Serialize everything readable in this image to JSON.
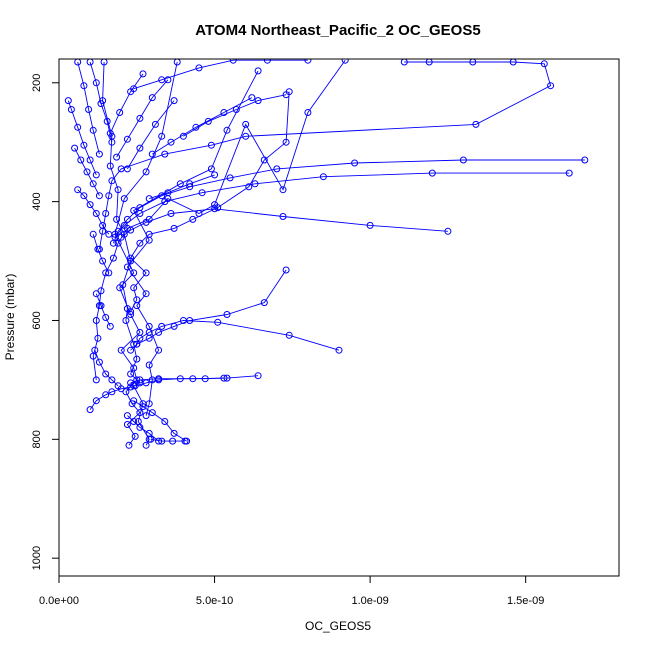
{
  "chart_data": {
    "type": "line",
    "title": "ATOM4 Northeast_Pacific_2 OC_GEOS5",
    "xlabel": "OC_GEOS5",
    "ylabel": "Pressure (mbar)",
    "xlim": [
      0,
      1.8e-09
    ],
    "ylim": [
      1030,
      160
    ],
    "y_reversed": true,
    "x_ticks": [
      {
        "value": 0,
        "label": "0.0e+00"
      },
      {
        "value": 5e-10,
        "label": "5.0e-10"
      },
      {
        "value": 1e-09,
        "label": "1.0e-09"
      },
      {
        "value": 1.5e-09,
        "label": "1.5e-09"
      }
    ],
    "y_ticks": [
      {
        "value": 200,
        "label": "200"
      },
      {
        "value": 400,
        "label": "400"
      },
      {
        "value": 600,
        "label": "600"
      },
      {
        "value": 800,
        "label": "800"
      },
      {
        "value": 1000,
        "label": "1000"
      }
    ],
    "series_color": "#0000ff",
    "marker": "open-circle",
    "grid": false,
    "series": [
      {
        "x": [
          1.45e-10,
          1.4e-10,
          1.7e-10,
          1.65e-10,
          1.9e-10,
          1.85e-10,
          2.1e-10,
          2.3e-10,
          2.05e-10,
          2.2e-10,
          2.15e-10,
          2.4e-10,
          2.5e-10,
          2.3e-10,
          2.6e-10,
          2.4e-10,
          2.7e-10,
          2.55e-10,
          2.9e-10,
          2.8e-10
        ],
        "y": [
          165,
          230,
          290,
          340,
          380,
          430,
          455,
          500,
          540,
          580,
          600,
          640,
          665,
          690,
          705,
          710,
          740,
          770,
          800,
          810
        ]
      },
      {
        "x": [
          3.8e-10,
          3.3e-10,
          2.8e-10,
          2.1e-10,
          1.8e-10,
          2.4e-10,
          1.95e-10,
          2.3e-10,
          2.6e-10,
          2e-10,
          2.4e-10,
          2.5e-10,
          2.15e-10,
          2.35e-10,
          2.6e-10,
          2.2e-10,
          2.45e-10,
          2.25e-10
        ],
        "y": [
          165,
          290,
          350,
          395,
          455,
          520,
          545,
          590,
          620,
          650,
          680,
          700,
          720,
          740,
          755,
          775,
          795,
          810
        ]
      },
      {
        "x": [
          6.4e-10,
          5.4e-10,
          4.9e-10,
          3.9e-10,
          2.4e-10,
          2.9e-10,
          2.2e-10,
          2.8e-10,
          2.5e-10,
          2.9e-10,
          3.2e-10,
          2.9e-10,
          3e-10,
          2.9e-10,
          2.8e-10
        ],
        "y": [
          180,
          280,
          345,
          370,
          415,
          465,
          510,
          555,
          575,
          610,
          650,
          675,
          700,
          740,
          760
        ]
      },
      {
        "x": [
          7.4e-10,
          7.3e-10,
          6.6e-10,
          6.1e-10,
          5.1e-10,
          4.3e-10,
          3.7e-10,
          2.9e-10,
          2.6e-10,
          2.3e-10,
          2.8e-10,
          2.4e-10,
          2.5e-10,
          2.3e-10
        ],
        "y": [
          215,
          300,
          330,
          375,
          410,
          430,
          445,
          455,
          470,
          495,
          520,
          545,
          565,
          585
        ]
      },
      {
        "x": [
          9.2e-10,
          8e-10,
          7.2e-10,
          6e-10,
          5e-10,
          4.5e-10,
          3.5e-10,
          2.9e-10,
          2.2e-10,
          1.9e-10,
          1.75e-10,
          1.5e-10,
          1.35e-10,
          1.3e-10,
          1.2e-10,
          1.25e-10,
          1.1e-10,
          1.2e-10
        ],
        "y": [
          162,
          250,
          380,
          270,
          405,
          420,
          395,
          430,
          445,
          470,
          495,
          520,
          550,
          575,
          600,
          630,
          660,
          700
        ]
      },
      {
        "x": [
          1.11e-09,
          1.19e-09,
          1.33e-09,
          1.46e-09,
          1.56e-09,
          1.58e-09,
          1.34e-09,
          6e-10,
          4.9e-10,
          3.4e-10,
          2e-10,
          1.7e-10,
          1.6e-10,
          1.5e-10,
          1.4e-10,
          1.3e-10
        ],
        "y": [
          165,
          165,
          165,
          165,
          168,
          205,
          270,
          290,
          305,
          320,
          345,
          365,
          390,
          420,
          450,
          480
        ]
      },
      {
        "x": [
          1.69e-09,
          1.3e-09,
          9.5e-10,
          7e-10,
          5.5e-10,
          4.2e-10,
          3.3e-10,
          2.6e-10,
          2.2e-10,
          1.9e-10,
          1.75e-10
        ],
        "y": [
          330,
          330,
          335,
          345,
          360,
          375,
          390,
          410,
          430,
          450,
          470
        ]
      },
      {
        "x": [
          1.64e-09,
          1.2e-09,
          8.5e-10,
          6.3e-10,
          4.6e-10,
          3.4e-10,
          2.6e-10,
          2.1e-10,
          1.8e-10
        ],
        "y": [
          352,
          352,
          358,
          370,
          385,
          400,
          420,
          440,
          460
        ]
      },
      {
        "x": [
          1.25e-09,
          1e-09,
          7.2e-10,
          5e-10,
          3.6e-10,
          2.8e-10,
          2.3e-10,
          2e-10
        ],
        "y": [
          450,
          440,
          425,
          412,
          420,
          435,
          448,
          460
        ]
      },
      {
        "x": [
          7.3e-10,
          6.6e-10,
          5.4e-10,
          4.2e-10,
          3.7e-10,
          3.2e-10,
          2.9e-10,
          2.5e-10,
          2.3e-10
        ],
        "y": [
          515,
          570,
          590,
          600,
          610,
          620,
          630,
          640,
          650
        ]
      },
      {
        "x": [
          9e-10,
          7.4e-10,
          5.1e-10,
          4e-10,
          3.3e-10,
          2.9e-10,
          2.6e-10,
          2.5e-10
        ],
        "y": [
          650,
          625,
          603,
          600,
          610,
          620,
          630,
          640
        ]
      },
      {
        "x": [
          6.4e-10,
          5.4e-10,
          4.3e-10,
          3.2e-10,
          2.6e-10,
          2.3e-10
        ],
        "y": [
          693,
          697,
          698,
          698,
          700,
          705
        ]
      },
      {
        "x": [
          5.3e-10,
          4.7e-10,
          3.9e-10,
          3.2e-10,
          2.8e-10,
          2.45e-10
        ],
        "y": [
          697,
          698,
          698,
          700,
          705,
          710
        ]
      },
      {
        "x": [
          4.1e-10,
          3.7e-10,
          3.4e-10,
          3e-10,
          2.7e-10,
          2.4e-10
        ],
        "y": [
          803,
          790,
          770,
          755,
          745,
          735
        ]
      },
      {
        "x": [
          3.2e-10,
          2.9e-10,
          2.6e-10,
          2.4e-10,
          2.2e-10
        ],
        "y": [
          803,
          790,
          780,
          770,
          760
        ]
      },
      {
        "x": [
          4.05e-10,
          3.65e-10,
          3.3e-10,
          2.95e-10
        ],
        "y": [
          803,
          803,
          803,
          800
        ]
      },
      {
        "x": [
          1e-10,
          1.2e-10,
          1.5e-10,
          1.7e-10,
          2e-10,
          2.3e-10
        ],
        "y": [
          750,
          735,
          725,
          720,
          715,
          712
        ]
      },
      {
        "x": [
          8e-10,
          6.7e-10,
          5.6e-10,
          4.5e-10,
          3.3e-10,
          2.4e-10
        ],
        "y": [
          162,
          162,
          162,
          175,
          195,
          210
        ]
      },
      {
        "x": [
          7.3e-10,
          6.4e-10,
          5.7e-10,
          4.8e-10,
          4e-10
        ],
        "y": [
          220,
          230,
          245,
          265,
          290
        ]
      },
      {
        "x": [
          6.2e-10,
          5.3e-10,
          4.4e-10,
          3.6e-10,
          3e-10
        ],
        "y": [
          225,
          250,
          275,
          300,
          320
        ]
      },
      {
        "x": [
          5e-10,
          4.2e-10,
          3.5e-10,
          2.9e-10
        ],
        "y": [
          355,
          370,
          385,
          395
        ]
      },
      {
        "x": [
          3.7e-10,
          3.1e-10,
          2.6e-10,
          2.2e-10
        ],
        "y": [
          230,
          270,
          310,
          345
        ]
      },
      {
        "x": [
          3.5e-10,
          3e-10,
          2.6e-10,
          2.2e-10,
          1.85e-10
        ],
        "y": [
          195,
          225,
          260,
          295,
          325
        ]
      },
      {
        "x": [
          2.7e-10,
          2.3e-10,
          1.95e-10,
          1.65e-10
        ],
        "y": [
          185,
          215,
          250,
          285
        ]
      },
      {
        "x": [
          1e-10,
          1.2e-10,
          1.35e-10,
          1.55e-10,
          1.7e-10
        ],
        "y": [
          165,
          200,
          235,
          265,
          300
        ]
      },
      {
        "x": [
          6e-11,
          8e-11,
          9.5e-11,
          1.1e-10,
          1.3e-10
        ],
        "y": [
          165,
          205,
          245,
          280,
          320
        ]
      },
      {
        "x": [
          3e-11,
          4e-11,
          6e-11,
          8e-11,
          1e-10,
          1.2e-10
        ],
        "y": [
          230,
          245,
          275,
          305,
          330,
          355
        ]
      },
      {
        "x": [
          5e-11,
          7e-11,
          9e-11,
          1.1e-10,
          1.3e-10
        ],
        "y": [
          310,
          330,
          350,
          370,
          390
        ]
      },
      {
        "x": [
          6e-11,
          8e-11,
          1e-10,
          1.2e-10,
          1.4e-10,
          1.6e-10
        ],
        "y": [
          380,
          390,
          405,
          420,
          440,
          455
        ]
      },
      {
        "x": [
          1.1e-10,
          1.25e-10,
          1.4e-10,
          1.6e-10
        ],
        "y": [
          455,
          480,
          500,
          520
        ]
      },
      {
        "x": [
          1.2e-10,
          1.35e-10,
          1.5e-10,
          1.65e-10
        ],
        "y": [
          555,
          575,
          595,
          610
        ]
      },
      {
        "x": [
          1.15e-10,
          1.3e-10,
          1.5e-10,
          1.7e-10,
          1.9e-10
        ],
        "y": [
          650,
          670,
          690,
          700,
          710
        ]
      }
    ]
  }
}
